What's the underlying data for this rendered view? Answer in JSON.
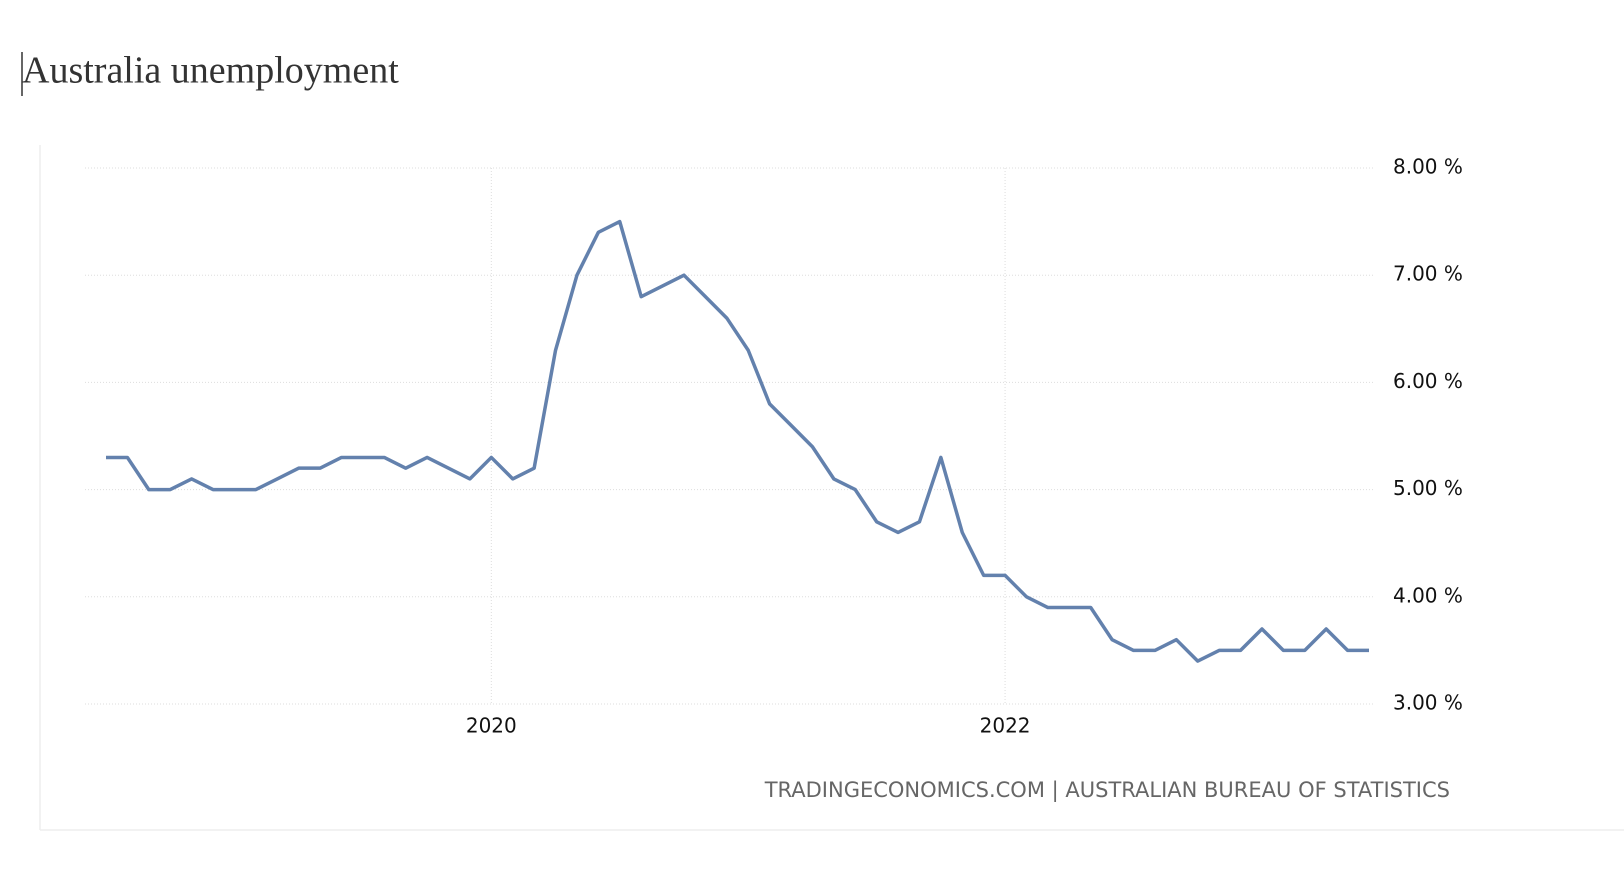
{
  "chart_data": {
    "type": "line",
    "title": "Australia unemployment",
    "source": "TRADINGECONOMICS.COM | AUSTRALIAN BUREAU OF STATISTICS",
    "categories": [
      null,
      null,
      null,
      null,
      null,
      null,
      null,
      null,
      null,
      null,
      null,
      null,
      null,
      null,
      null,
      null,
      null,
      null,
      "2020",
      null,
      null,
      null,
      null,
      null,
      null,
      null,
      null,
      null,
      null,
      null,
      null,
      null,
      null,
      null,
      null,
      null,
      null,
      null,
      null,
      null,
      null,
      null,
      "2022",
      null,
      null,
      null,
      null,
      null,
      null,
      null,
      null,
      null,
      null,
      null,
      null,
      null,
      null,
      null,
      null,
      null
    ],
    "series": [
      {
        "name": "Australia unemployment",
        "color": "#6381ad",
        "values": [
          5.3,
          5.3,
          5.0,
          5.0,
          5.1,
          5.0,
          5.0,
          5.0,
          5.1,
          5.2,
          5.2,
          5.3,
          5.3,
          5.3,
          5.2,
          5.3,
          5.2,
          5.1,
          5.3,
          5.1,
          5.2,
          6.3,
          7.0,
          7.4,
          7.5,
          6.8,
          6.9,
          7.0,
          6.8,
          6.6,
          6.3,
          5.8,
          5.6,
          5.4,
          5.1,
          5.0,
          4.7,
          4.6,
          4.7,
          5.3,
          4.6,
          4.2,
          4.2,
          4.0,
          3.9,
          3.9,
          3.9,
          3.6,
          3.5,
          3.5,
          3.6,
          3.4,
          3.5,
          3.5,
          3.7,
          3.5,
          3.5,
          3.7,
          3.5,
          3.5
        ]
      }
    ],
    "ylim": [
      3,
      8
    ],
    "yticks": [
      {
        "value": 3,
        "label": "3.00 %"
      },
      {
        "value": 4,
        "label": "4.00 %"
      },
      {
        "value": 5,
        "label": "5.00 %"
      },
      {
        "value": 6,
        "label": "6.00 %"
      },
      {
        "value": 7,
        "label": "7.00 %"
      },
      {
        "value": 8,
        "label": "8.00 %"
      }
    ],
    "grid": true
  }
}
